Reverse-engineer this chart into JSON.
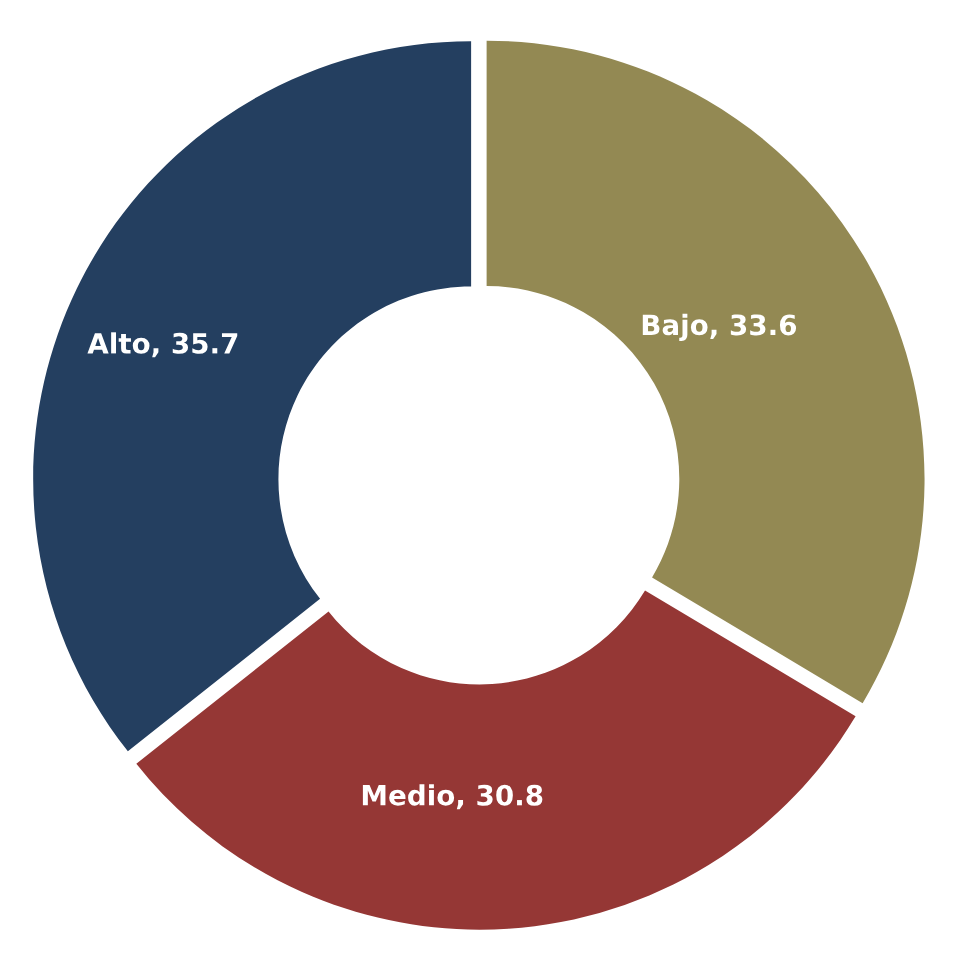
{
  "chart_data": {
    "type": "donut",
    "categories": [
      "Bajo",
      "Medio",
      "Alto"
    ],
    "values": [
      33.6,
      30.8,
      35.7
    ],
    "colors": [
      "#938953",
      "#953735",
      "#243f60"
    ],
    "value_labels": [
      ", 33.6",
      ", 30.8",
      ", 35.7"
    ],
    "legend": false
  }
}
